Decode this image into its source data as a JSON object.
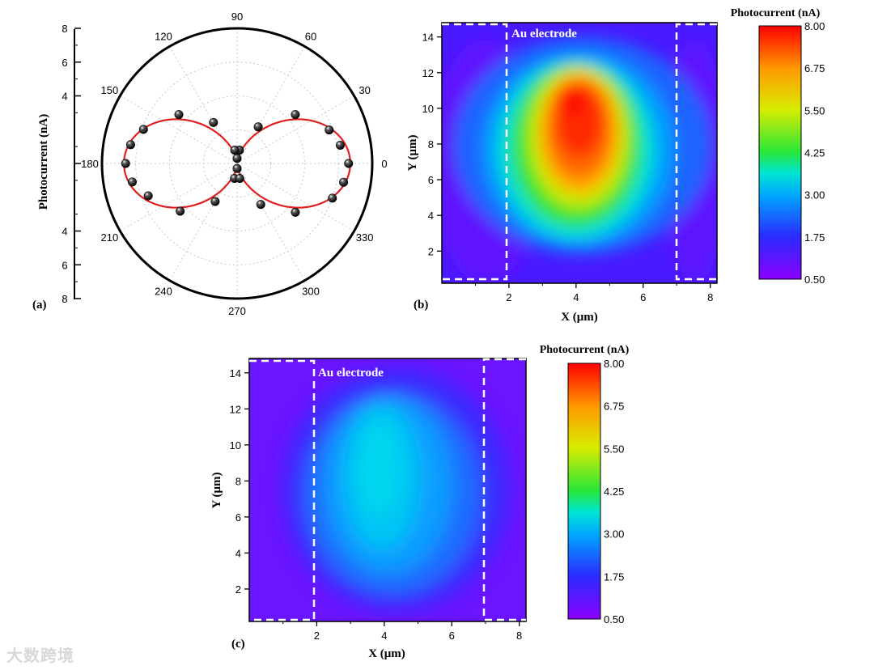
{
  "figure": {
    "panel_a_label": "(a)",
    "panel_b_label": "(b)",
    "panel_c_label": "(c)",
    "electrode_label": "Au electrode",
    "watermark": "大数跨境"
  },
  "chart_data": [
    {
      "panel": "(a)",
      "type": "scatter",
      "coordinate_system": "polar",
      "ylabel": "Photocurrent (nA)",
      "radial_ticks": [
        "8",
        "6",
        "4",
        "",
        "4",
        "6",
        "8"
      ],
      "radial_max": 8,
      "angle_ticks": [
        "0",
        "30",
        "60",
        "90",
        "120",
        "150",
        "180",
        "210",
        "240",
        "270",
        "300",
        "330"
      ],
      "series": [
        {
          "marker": "black sphere",
          "angles_deg": [
            0,
            10,
            20,
            40,
            60,
            80,
            90,
            100,
            120,
            140,
            160,
            170,
            180,
            190,
            200,
            220,
            240,
            260,
            270,
            280,
            300,
            320,
            340,
            350
          ],
          "values": [
            6.6,
            6.2,
            5.8,
            4.5,
            2.5,
            0.8,
            0.3,
            0.8,
            2.8,
            4.5,
            5.9,
            6.4,
            6.6,
            6.3,
            5.6,
            4.4,
            2.6,
            0.9,
            0.3,
            0.9,
            2.8,
            4.5,
            6.0,
            6.4
          ]
        },
        {
          "line_color": "#e02020",
          "fit": "cos^2 (figure-eight)",
          "amplitude": 6.5
        }
      ]
    },
    {
      "panel": "(b)",
      "type": "heatmap",
      "xlabel": "X (μm)",
      "ylabel": "Y (μm)",
      "x_ticks": [
        "2",
        "4",
        "6",
        "8"
      ],
      "y_ticks": [
        "2",
        "4",
        "6",
        "8",
        "10",
        "12",
        "14"
      ],
      "xlim": [
        0,
        8.2
      ],
      "ylim": [
        0.2,
        14.8
      ],
      "colorbar": {
        "title": "Photocurrent (nA)",
        "ticks": [
          "8.00",
          "6.75",
          "5.50",
          "4.25",
          "3.00",
          "1.75",
          "0.50"
        ],
        "range": [
          0.5,
          8.0
        ]
      },
      "electrode_edges_x": [
        2,
        7
      ],
      "peak": {
        "x": 4.3,
        "y": 9.5,
        "value": 8.0
      },
      "background_value": 1.2
    },
    {
      "panel": "(c)",
      "type": "heatmap",
      "xlabel": "X (μm)",
      "ylabel": "Y (μm)",
      "x_ticks": [
        "2",
        "4",
        "6",
        "8"
      ],
      "y_ticks": [
        "2",
        "4",
        "6",
        "8",
        "10",
        "12",
        "14"
      ],
      "xlim": [
        0,
        8.2
      ],
      "ylim": [
        0.2,
        14.8
      ],
      "colorbar": {
        "title": "Photocurrent (nA)",
        "ticks": [
          "8.00",
          "6.75",
          "5.50",
          "4.25",
          "3.00",
          "1.75",
          "0.50"
        ],
        "range": [
          0.5,
          8.0
        ]
      },
      "electrode_edges_x": [
        2,
        7
      ],
      "peak": {
        "x": 4.3,
        "y": 8.0,
        "value": 3.3
      },
      "background_value": 0.9
    }
  ]
}
